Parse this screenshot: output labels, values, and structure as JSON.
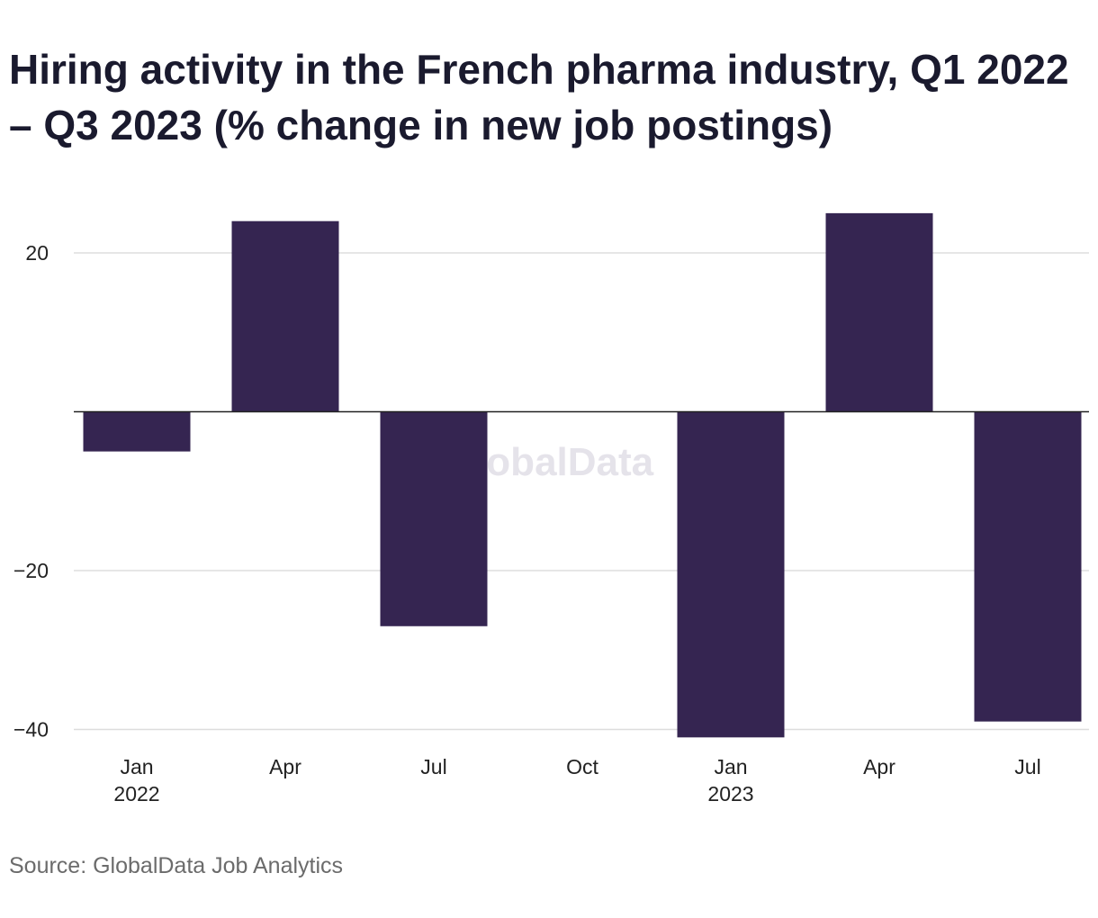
{
  "title": "Hiring activity in the French pharma industry, Q1 2022 – Q3 2023 (% change in new job postings)",
  "source": "Source: GlobalData Job Analytics",
  "watermark": "GlobalData",
  "colors": {
    "bar": "#352551",
    "grid": "#dddddd",
    "zero_line": "#222222"
  },
  "chart_data": {
    "type": "bar",
    "categories": [
      "Q1 2022",
      "Q2 2022",
      "Q3 2022",
      "Q4 2022",
      "Q1 2023",
      "Q2 2023",
      "Q3 2023"
    ],
    "x_tick_labels": [
      {
        "line1": "Jan",
        "line2": "2022"
      },
      {
        "line1": "Apr",
        "line2": ""
      },
      {
        "line1": "Jul",
        "line2": ""
      },
      {
        "line1": "Oct",
        "line2": ""
      },
      {
        "line1": "Jan",
        "line2": "2023"
      },
      {
        "line1": "Apr",
        "line2": ""
      },
      {
        "line1": "Jul",
        "line2": ""
      }
    ],
    "values": [
      -5,
      24,
      -27,
      0,
      -41,
      25,
      -39
    ],
    "ylim": [
      -41,
      28
    ],
    "yticks": [
      20,
      -20,
      -40
    ],
    "ytick_labels": [
      "20",
      "−20",
      "−40"
    ],
    "grid": true,
    "xlabel": "",
    "ylabel": ""
  }
}
